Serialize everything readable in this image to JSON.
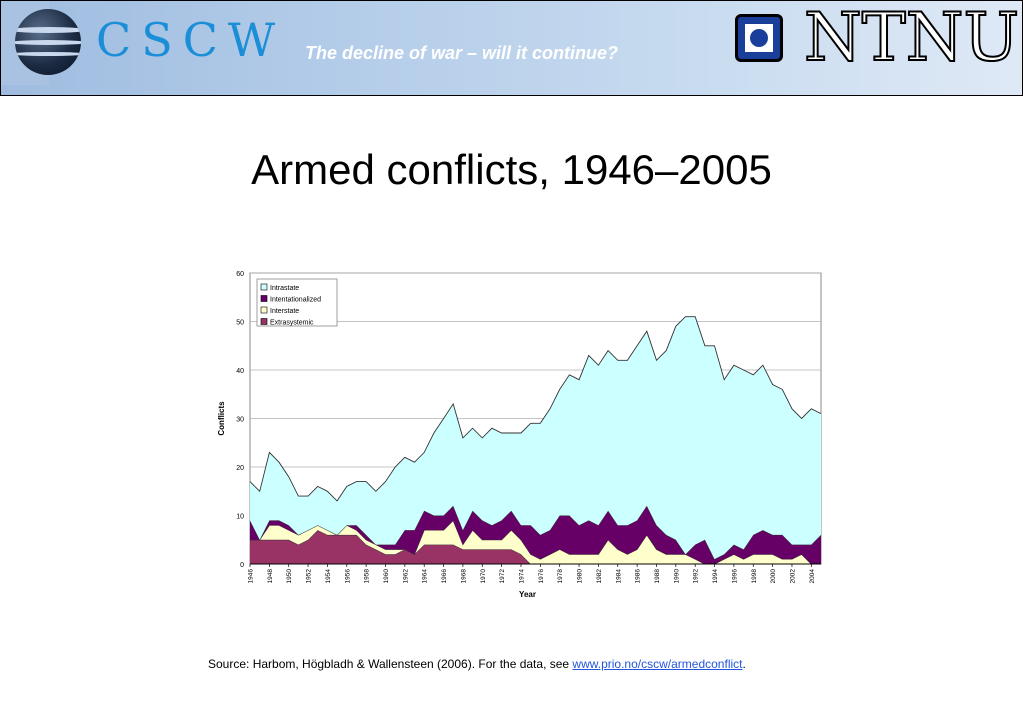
{
  "header": {
    "cscw_logo": "CSCW",
    "title": "The decline of war – will it continue?",
    "ntnu_logo": "NTNU"
  },
  "page_title": "Armed conflicts, 1946–2005",
  "source": {
    "prefix": "Source: Harbom, Högbladh & Wallensteen (2006). For the data, see ",
    "link": "www.prio.no/cscw/armedconflict",
    "suffix": "."
  },
  "colors": {
    "intrastate": "#ccffff",
    "internationalized": "#660066",
    "interstate": "#ffffcc",
    "extrasystemic": "#993366"
  },
  "chart_data": {
    "type": "area",
    "stacked": true,
    "xlabel": "Year",
    "ylabel": "Conflicts",
    "ylim": [
      0,
      60
    ],
    "yticks": [
      0,
      10,
      20,
      30,
      40,
      50,
      60
    ],
    "xticks": [
      "1946",
      "1948",
      "1950",
      "1952",
      "1954",
      "1956",
      "1958",
      "1960",
      "1962",
      "1964",
      "1966",
      "1968",
      "1970",
      "1972",
      "1974",
      "1976",
      "1978",
      "1980",
      "1982",
      "1984",
      "1986",
      "1988",
      "1990",
      "1992",
      "1994",
      "1996",
      "1998",
      "2000",
      "2002",
      "2004"
    ],
    "grid": true,
    "legend_position": "top-left",
    "x": [
      1946,
      1947,
      1948,
      1949,
      1950,
      1951,
      1952,
      1953,
      1954,
      1955,
      1956,
      1957,
      1958,
      1959,
      1960,
      1961,
      1962,
      1963,
      1964,
      1965,
      1966,
      1967,
      1968,
      1969,
      1970,
      1971,
      1972,
      1973,
      1974,
      1975,
      1976,
      1977,
      1978,
      1979,
      1980,
      1981,
      1982,
      1983,
      1984,
      1985,
      1986,
      1987,
      1988,
      1989,
      1990,
      1991,
      1992,
      1993,
      1994,
      1995,
      1996,
      1997,
      1998,
      1999,
      2000,
      2001,
      2002,
      2003,
      2004,
      2005
    ],
    "series": [
      {
        "name": "Extrasystemic",
        "values": [
          5,
          5,
          5,
          5,
          5,
          4,
          5,
          7,
          6,
          6,
          6,
          6,
          4,
          3,
          2,
          2,
          3,
          2,
          4,
          4,
          4,
          4,
          3,
          3,
          3,
          3,
          3,
          3,
          2,
          0,
          0,
          0,
          0,
          0,
          0,
          0,
          0,
          0,
          0,
          0,
          0,
          0,
          0,
          0,
          0,
          0,
          0,
          0,
          0,
          0,
          0,
          0,
          0,
          0,
          0,
          0,
          0,
          0,
          0,
          0
        ]
      },
      {
        "name": "Interstate",
        "values": [
          0,
          0,
          3,
          3,
          2,
          2,
          2,
          1,
          1,
          0,
          2,
          1,
          1,
          1,
          1,
          1,
          0,
          0,
          3,
          3,
          3,
          5,
          1,
          4,
          2,
          2,
          2,
          4,
          3,
          2,
          1,
          2,
          3,
          2,
          2,
          2,
          2,
          5,
          3,
          2,
          3,
          6,
          3,
          2,
          2,
          2,
          1,
          0,
          0,
          1,
          2,
          1,
          2,
          2,
          2,
          1,
          1,
          2,
          0,
          0
        ]
      },
      {
        "name": "Intentationalized",
        "values": [
          4,
          0,
          1,
          1,
          1,
          0,
          0,
          0,
          0,
          0,
          0,
          1,
          1,
          0,
          1,
          1,
          4,
          5,
          4,
          3,
          3,
          3,
          3,
          4,
          4,
          3,
          4,
          4,
          3,
          6,
          5,
          5,
          7,
          8,
          6,
          7,
          6,
          6,
          5,
          6,
          6,
          6,
          5,
          4,
          3,
          0,
          3,
          5,
          1,
          1,
          2,
          2,
          4,
          5,
          4,
          5,
          3,
          2,
          4,
          6
        ]
      },
      {
        "name": "Intrastate",
        "values": [
          8,
          10,
          14,
          12,
          10,
          8,
          7,
          8,
          8,
          7,
          8,
          9,
          11,
          11,
          13,
          16,
          15,
          14,
          12,
          17,
          20,
          21,
          19,
          17,
          17,
          20,
          18,
          16,
          19,
          21,
          23,
          25,
          26,
          29,
          30,
          34,
          33,
          33,
          34,
          34,
          36,
          36,
          34,
          38,
          44,
          49,
          47,
          40,
          44,
          36,
          37,
          37,
          33,
          34,
          31,
          30,
          28,
          26,
          28,
          25
        ]
      }
    ]
  }
}
